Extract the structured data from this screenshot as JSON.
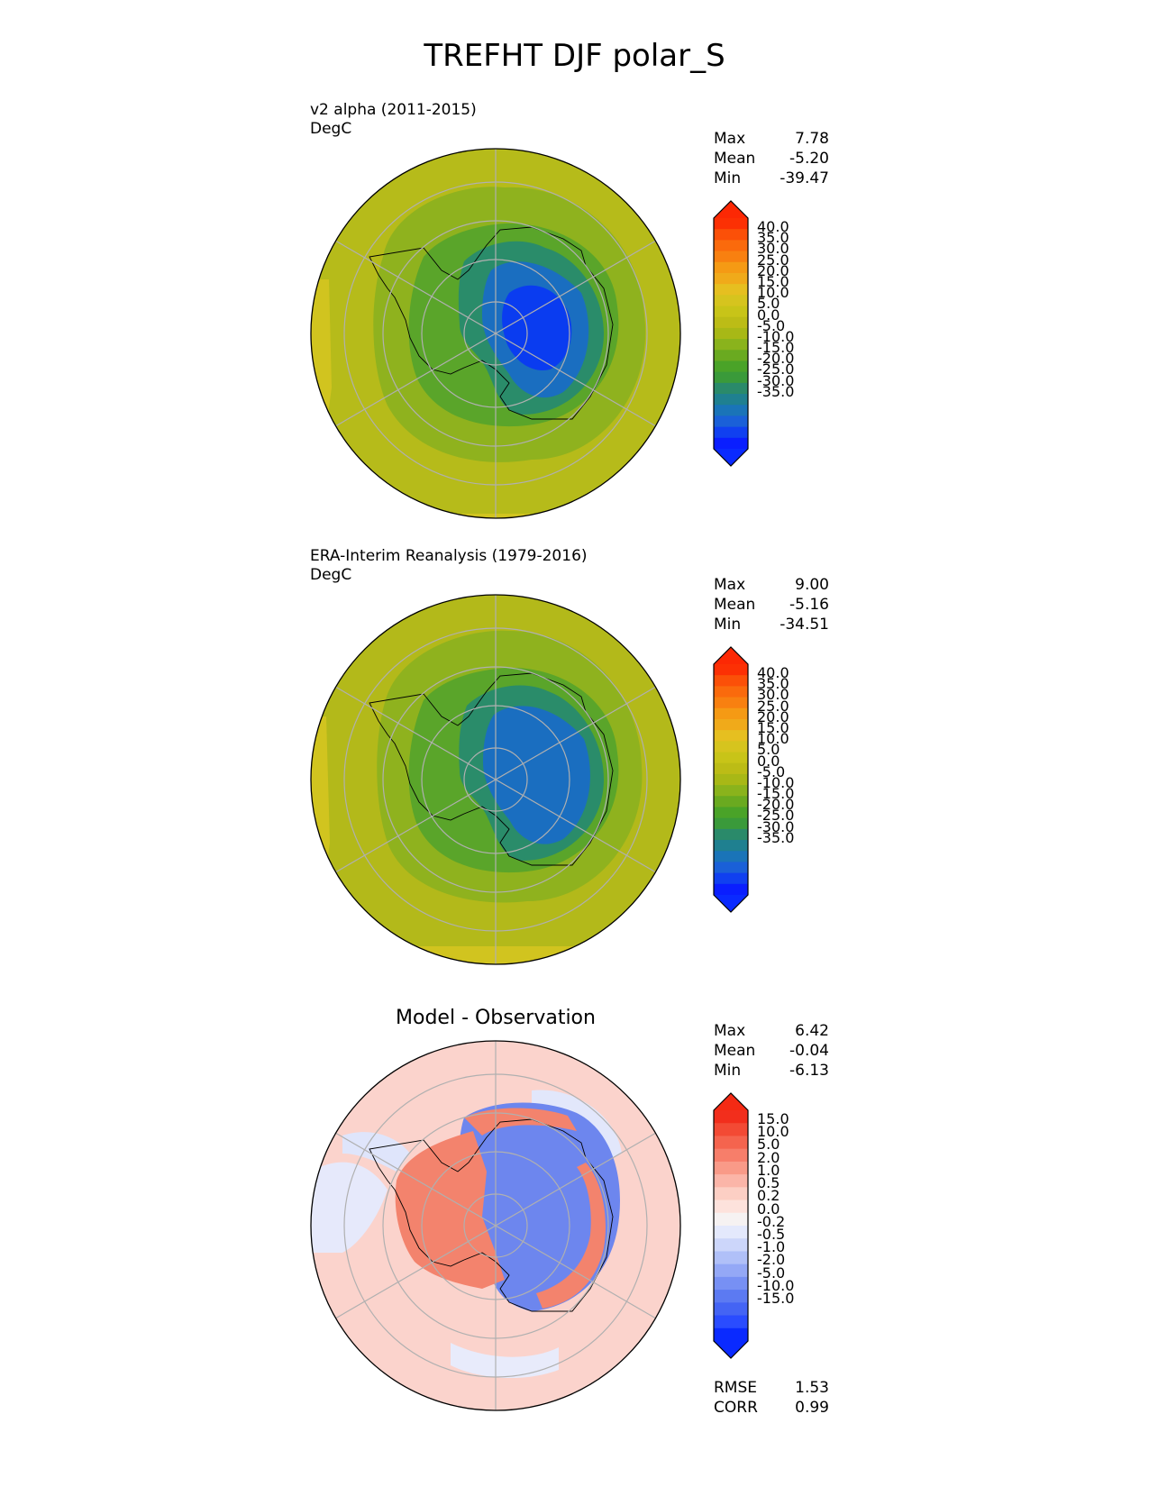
{
  "title": "TREFHT DJF polar_S",
  "panels": [
    {
      "id": "test",
      "title_line1": "v2 alpha (2011-2015)",
      "title_line2": "DegC",
      "stats": {
        "max_label": "Max",
        "max": "7.78",
        "mean_label": "Mean",
        "mean": "-5.20",
        "min_label": "Min",
        "min": "-39.47"
      },
      "colorbar": {
        "ticks": [
          "40.0",
          "35.0",
          "30.0",
          "25.0",
          "20.0",
          "15.0",
          "10.0",
          "5.0",
          "0.0",
          "-5.0",
          "-10.0",
          "-15.0",
          "-20.0",
          "-25.0",
          "-30.0",
          "-35.0"
        ],
        "colors": [
          "#0a1eff",
          "#1040f0",
          "#1a60d8",
          "#1a74b8",
          "#1f8090",
          "#2a8a6a",
          "#3a9a3a",
          "#4aa328",
          "#6aaa20",
          "#8ab31c",
          "#a8b816",
          "#bcbc16",
          "#c8c418",
          "#d6c41e",
          "#e6bf20",
          "#f0aa1a",
          "#f59a14",
          "#f88010",
          "#fa6a0c",
          "#fb5008",
          "#fc3004"
        ],
        "over_color": "#fc2804",
        "under_color": "#0a2aff"
      }
    },
    {
      "id": "reference",
      "title_line1": "ERA-Interim Reanalysis (1979-2016)",
      "title_line2": "DegC",
      "stats": {
        "max_label": "Max",
        "max": "9.00",
        "mean_label": "Mean",
        "mean": "-5.16",
        "min_label": "Min",
        "min": "-34.51"
      },
      "colorbar": {
        "ticks": [
          "40.0",
          "35.0",
          "30.0",
          "25.0",
          "20.0",
          "15.0",
          "10.0",
          "5.0",
          "0.0",
          "-5.0",
          "-10.0",
          "-15.0",
          "-20.0",
          "-25.0",
          "-30.0",
          "-35.0"
        ],
        "colors": [
          "#0a1eff",
          "#1040f0",
          "#1a60d8",
          "#1a74b8",
          "#1f8090",
          "#2a8a6a",
          "#3a9a3a",
          "#4aa328",
          "#6aaa20",
          "#8ab31c",
          "#a8b816",
          "#bcbc16",
          "#c8c418",
          "#d6c41e",
          "#e6bf20",
          "#f0aa1a",
          "#f59a14",
          "#f88010",
          "#fa6a0c",
          "#fb5008",
          "#fc3004"
        ],
        "over_color": "#fc2804",
        "under_color": "#0a2aff"
      }
    },
    {
      "id": "difference",
      "title_center": "Model - Observation",
      "stats": {
        "max_label": "Max",
        "max": "6.42",
        "mean_label": "Mean",
        "mean": "-0.04",
        "min_label": "Min",
        "min": "-6.13"
      },
      "metrics": {
        "rmse_label": "RMSE",
        "rmse": "1.53",
        "corr_label": "CORR",
        "corr": "0.99"
      },
      "colorbar": {
        "ticks": [
          "15.0",
          "10.0",
          "5.0",
          "2.0",
          "1.0",
          "0.5",
          "0.2",
          "0.0",
          "-0.2",
          "-0.5",
          "-1.0",
          "-2.0",
          "-5.0",
          "-10.0",
          "-15.0"
        ],
        "colors": [
          "#0a2aff",
          "#2a4cff",
          "#4464f4",
          "#5c7af2",
          "#7790f4",
          "#94a8f6",
          "#b0c0f8",
          "#ccd6fa",
          "#e4e9fc",
          "#f6f2f2",
          "#fde2dc",
          "#fccfc4",
          "#fbb5a8",
          "#f99a88",
          "#f77e6a",
          "#f5644e",
          "#f34a34",
          "#f22e1c"
        ],
        "over_color": "#f42a14",
        "under_color": "#0a2aff"
      }
    }
  ],
  "map_colors": {
    "ocean_test": "#b6bb1a",
    "ocean_ref": "#b3b91a",
    "outer_rim": "#d1c41f",
    "sea_ice_zone": "#8fb21e",
    "coast_zone": "#5aa52a",
    "interior_1": "#2a8c6a",
    "interior_2": "#1a6ec0",
    "interior_3": "#0a3cf0",
    "diff_background": "#fbd3cc",
    "diff_positive": "#f3836d",
    "diff_negative": "#6d86ee",
    "gridline": "#b0b0b0"
  }
}
